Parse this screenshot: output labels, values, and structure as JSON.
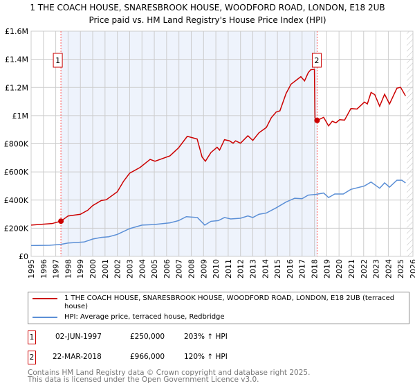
{
  "title": {
    "line1": "1 THE COACH HOUSE, SNARESBROOK HOUSE, WOODFORD ROAD, LONDON, E18 2UB",
    "line2": "Price paid vs. HM Land Registry's House Price Index (HPI)"
  },
  "chart_data": {
    "type": "line",
    "xlim": [
      1995,
      2026
    ],
    "ylim": [
      0,
      1600000
    ],
    "x_ticks": [
      "1995",
      "1996",
      "1997",
      "1998",
      "1999",
      "2000",
      "2001",
      "2002",
      "2003",
      "2004",
      "2005",
      "2006",
      "2007",
      "2008",
      "2009",
      "2010",
      "2011",
      "2012",
      "2013",
      "2014",
      "2015",
      "2016",
      "2017",
      "2018",
      "2019",
      "2020",
      "2021",
      "2022",
      "2023",
      "2024",
      "2025",
      "2026"
    ],
    "y_ticks": [
      {
        "v": 0,
        "label": "£0"
      },
      {
        "v": 200000,
        "label": "£200K"
      },
      {
        "v": 400000,
        "label": "£400K"
      },
      {
        "v": 600000,
        "label": "£600K"
      },
      {
        "v": 800000,
        "label": "£800K"
      },
      {
        "v": 1000000,
        "label": "£1M"
      },
      {
        "v": 1200000,
        "label": "£1.2M"
      },
      {
        "v": 1400000,
        "label": "£1.4M"
      },
      {
        "v": 1600000,
        "label": "£1.6M"
      }
    ],
    "grid": true,
    "shaded_range": [
      1997.42,
      2018.22
    ],
    "data_end": 2025.5,
    "series": [
      {
        "name": "1 THE COACH HOUSE, SNARESBROOK HOUSE, WOODFORD ROAD, LONDON, E18 2UB (terraced house)",
        "color": "#cc0000",
        "points": [
          [
            1995,
            222000
          ],
          [
            1996.7,
            233000
          ],
          [
            1997.42,
            250000
          ],
          [
            1998,
            287000
          ],
          [
            1999,
            299000
          ],
          [
            1999.6,
            328000
          ],
          [
            2000,
            361000
          ],
          [
            2000.7,
            397000
          ],
          [
            2001.1,
            402000
          ],
          [
            2002,
            459000
          ],
          [
            2002.5,
            533000
          ],
          [
            2003,
            591000
          ],
          [
            2003.85,
            632000
          ],
          [
            2004.66,
            689000
          ],
          [
            2005.06,
            676000
          ],
          [
            2006.27,
            714000
          ],
          [
            2006.97,
            771000
          ],
          [
            2007.68,
            853000
          ],
          [
            2008.48,
            834000
          ],
          [
            2008.88,
            706000
          ],
          [
            2009.15,
            676000
          ],
          [
            2009.6,
            738000
          ],
          [
            2010.1,
            775000
          ],
          [
            2010.3,
            755000
          ],
          [
            2010.7,
            829000
          ],
          [
            2011.1,
            821000
          ],
          [
            2011.4,
            804000
          ],
          [
            2011.6,
            821000
          ],
          [
            2012,
            804000
          ],
          [
            2012.6,
            857000
          ],
          [
            2013,
            824000
          ],
          [
            2013.5,
            878000
          ],
          [
            2014.1,
            916000
          ],
          [
            2014.5,
            985000
          ],
          [
            2014.9,
            1026000
          ],
          [
            2015.2,
            1034000
          ],
          [
            2015.7,
            1157000
          ],
          [
            2016.1,
            1223000
          ],
          [
            2016.5,
            1250000
          ],
          [
            2016.9,
            1277000
          ],
          [
            2017.2,
            1247000
          ],
          [
            2017.5,
            1305000
          ],
          [
            2017.7,
            1326000
          ],
          [
            2018.0,
            1329000
          ],
          [
            2018.05,
            985000
          ],
          [
            2018.22,
            966000
          ],
          [
            2018.75,
            988000
          ],
          [
            2019.15,
            927000
          ],
          [
            2019.45,
            960000
          ],
          [
            2019.75,
            949000
          ],
          [
            2020.05,
            971000
          ],
          [
            2020.45,
            968000
          ],
          [
            2020.96,
            1050000
          ],
          [
            2021.46,
            1047000
          ],
          [
            2022.06,
            1096000
          ],
          [
            2022.3,
            1083000
          ],
          [
            2022.6,
            1165000
          ],
          [
            2022.9,
            1149000
          ],
          [
            2023.3,
            1067000
          ],
          [
            2023.7,
            1152000
          ],
          [
            2024.1,
            1083000
          ],
          [
            2024.7,
            1195000
          ],
          [
            2025.0,
            1201000
          ],
          [
            2025.4,
            1140000
          ]
        ]
      },
      {
        "name": "HPI: Average price, terraced house, Redbridge",
        "color": "#5b8fd6",
        "points": [
          [
            1995,
            77000
          ],
          [
            1996.5,
            79000
          ],
          [
            1997.4,
            85000
          ],
          [
            1998,
            95000
          ],
          [
            1999.3,
            102000
          ],
          [
            2000,
            123000
          ],
          [
            2000.7,
            135000
          ],
          [
            2001.3,
            139000
          ],
          [
            2002,
            156000
          ],
          [
            2003,
            197000
          ],
          [
            2004,
            222000
          ],
          [
            2004.96,
            226000
          ],
          [
            2006.27,
            238000
          ],
          [
            2006.97,
            254000
          ],
          [
            2007.6,
            282000
          ],
          [
            2008.5,
            276000
          ],
          [
            2009.1,
            222000
          ],
          [
            2009.6,
            249000
          ],
          [
            2010.2,
            254000
          ],
          [
            2010.7,
            276000
          ],
          [
            2011.2,
            266000
          ],
          [
            2012,
            271000
          ],
          [
            2012.6,
            287000
          ],
          [
            2013,
            276000
          ],
          [
            2013.5,
            299000
          ],
          [
            2014.1,
            308000
          ],
          [
            2014.9,
            345000
          ],
          [
            2015.7,
            386000
          ],
          [
            2016.4,
            413000
          ],
          [
            2017,
            410000
          ],
          [
            2017.5,
            435000
          ],
          [
            2018.1,
            440000
          ],
          [
            2018.75,
            450000
          ],
          [
            2019.15,
            418000
          ],
          [
            2019.65,
            443000
          ],
          [
            2020.35,
            443000
          ],
          [
            2020.96,
            476000
          ],
          [
            2022.06,
            500000
          ],
          [
            2022.6,
            528000
          ],
          [
            2023.3,
            484000
          ],
          [
            2023.7,
            522000
          ],
          [
            2024.1,
            492000
          ],
          [
            2024.7,
            541000
          ],
          [
            2025.1,
            541000
          ],
          [
            2025.4,
            522000
          ]
        ]
      }
    ],
    "sales": [
      {
        "label": "1",
        "x": 1997.42,
        "y": 250000
      },
      {
        "label": "2",
        "x": 2018.22,
        "y": 966000
      }
    ]
  },
  "legend": {
    "red_label": "1 THE COACH HOUSE, SNARESBROOK HOUSE, WOODFORD ROAD, LONDON, E18 2UB (terraced house)",
    "blue_label": "HPI: Average price, terraced house, Redbridge"
  },
  "transactions": [
    {
      "num": "1",
      "date": "02-JUN-1997",
      "price": "£250,000",
      "hpi": "203% ↑ HPI"
    },
    {
      "num": "2",
      "date": "22-MAR-2018",
      "price": "£966,000",
      "hpi": "120% ↑ HPI"
    }
  ],
  "footer": {
    "line1": "Contains HM Land Registry data © Crown copyright and database right 2025.",
    "line2": "This data is licensed under the Open Government Licence v3.0."
  }
}
